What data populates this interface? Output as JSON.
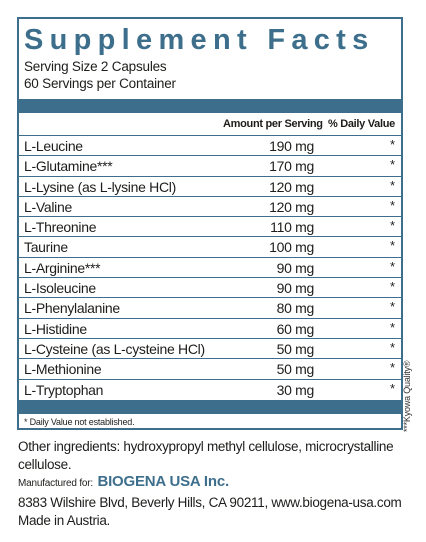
{
  "facts": {
    "title": "Supplement Facts",
    "serving_size": "Serving Size 2 Capsules",
    "servings_per_container": "60 Servings per Container",
    "header_amount": "Amount per Serving",
    "header_dv": "% Daily Value",
    "rows": [
      {
        "name": "L-Leucine",
        "amount": "190 mg",
        "dv": "*"
      },
      {
        "name": "L-Glutamine***",
        "amount": "170 mg",
        "dv": "*"
      },
      {
        "name": "L-Lysine (as L-lysine HCl)",
        "amount": "120 mg",
        "dv": "*"
      },
      {
        "name": "L-Valine",
        "amount": "120 mg",
        "dv": "*"
      },
      {
        "name": "L-Threonine",
        "amount": "110 mg",
        "dv": "*"
      },
      {
        "name": "Taurine",
        "amount": "100 mg",
        "dv": "*"
      },
      {
        "name": "L-Arginine***",
        "amount": "90 mg",
        "dv": "*"
      },
      {
        "name": "L-Isoleucine",
        "amount": "90 mg",
        "dv": "*"
      },
      {
        "name": "L-Phenylalanine",
        "amount": "80 mg",
        "dv": "*"
      },
      {
        "name": "L-Histidine",
        "amount": "60 mg",
        "dv": "*"
      },
      {
        "name": "L-Cysteine (as L-cysteine HCl)",
        "amount": "50 mg",
        "dv": "*"
      },
      {
        "name": "L-Methionine",
        "amount": "50 mg",
        "dv": "*"
      },
      {
        "name": "L-Tryptophan",
        "amount": "30 mg",
        "dv": "*"
      }
    ],
    "footnote": "* Daily Value not established."
  },
  "side_note": "***Kyowa Quality®",
  "other_ingredients": "Other ingredients: hydroxypropyl methyl cellulose, microcrystalline cellulose.",
  "manufacturer": {
    "label": "Manufactured for:",
    "brand": "BIOGENA USA Inc.",
    "address": "8383 Wilshire Blvd, Beverly Hills, CA 90211, www.biogena-usa.com",
    "made_in": "Made in Austria."
  },
  "colors": {
    "accent": "#3d6f8c",
    "text": "#1d1d1b"
  }
}
